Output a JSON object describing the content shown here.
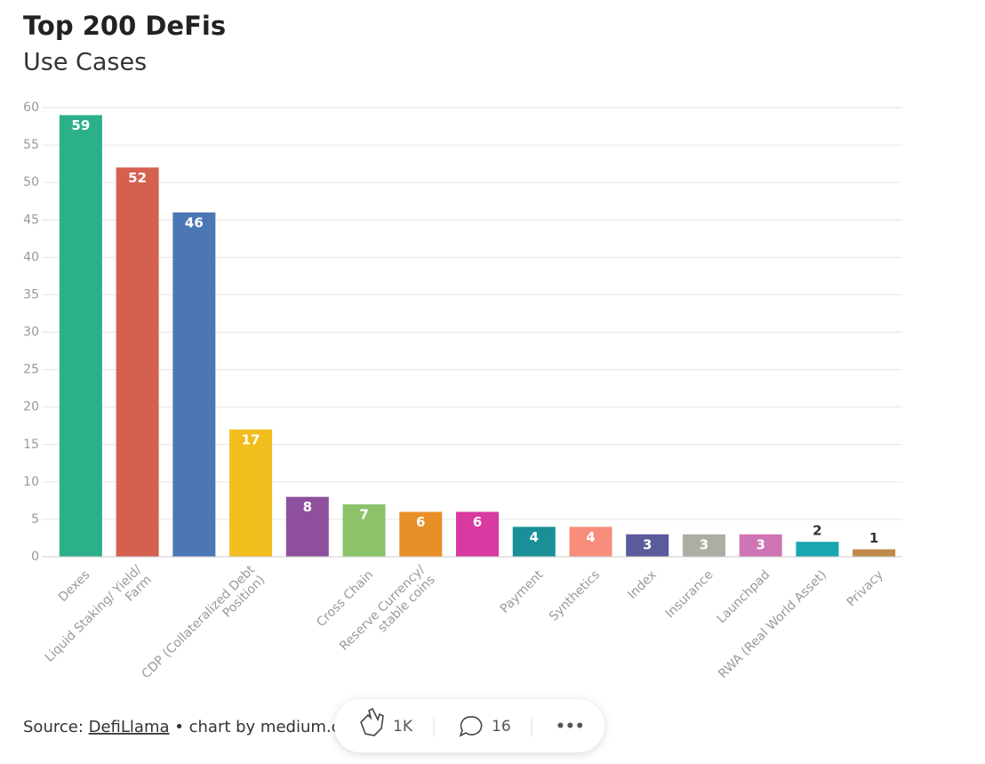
{
  "chart_data": {
    "type": "bar",
    "title": "Top 200 DeFis",
    "subtitle": "Use Cases",
    "categories": [
      "Dexes",
      "Liquid Staking/ Yield/ Farm",
      null,
      "CDP (Collateralized Debt Position)",
      null,
      "Cross Chain",
      "Reserve Currency/ stable coins",
      null,
      "Payment",
      "Synthetics",
      "Index",
      "Insurance",
      "Launchpad",
      "RWA (Real World Asset)",
      "Privacy"
    ],
    "values": [
      59,
      52,
      46,
      17,
      8,
      7,
      6,
      6,
      4,
      4,
      3,
      3,
      3,
      2,
      1
    ],
    "colors": [
      "#2bb089",
      "#d4604f",
      "#4c77b5",
      "#f2be1e",
      "#8e4f9d",
      "#8cc26a",
      "#e98f28",
      "#d83aa1",
      "#1a8f98",
      "#f88d7c",
      "#5b5a9b",
      "#abafa3",
      "#cf74b4",
      "#1aa6b1",
      "#bf8a4c"
    ],
    "ylim": [
      0,
      60
    ],
    "yticks": [
      0,
      5,
      10,
      15,
      20,
      25,
      30,
      35,
      40,
      45,
      50,
      55,
      60
    ],
    "grid": true,
    "source": {
      "prefix": "Source:",
      "link": "DefiLlama",
      "suffix": "• chart by medium.com"
    },
    "toolbar": {
      "claps": "1K",
      "comments": "16",
      "more": "•••"
    }
  }
}
